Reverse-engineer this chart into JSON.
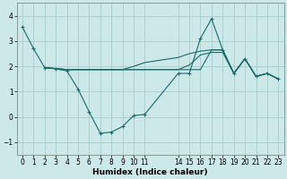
{
  "xlabel": "Humidex (Indice chaleur)",
  "bg_color": "#cce8e8",
  "grid_color": "#aacccc",
  "line_color": "#1a6b6b",
  "ylim": [
    -1.5,
    4.5
  ],
  "xlim": [
    -0.5,
    23.5
  ],
  "yticks": [
    -1,
    0,
    1,
    2,
    3,
    4
  ],
  "xtick_vals": [
    0,
    1,
    2,
    3,
    4,
    5,
    6,
    7,
    8,
    9,
    10,
    11,
    14,
    15,
    16,
    17,
    18,
    19,
    20,
    21,
    22,
    23
  ],
  "xtick_labels": [
    "0",
    "1",
    "2",
    "3",
    "4",
    "5",
    "6",
    "7",
    "8",
    "9",
    "1011",
    "",
    "14151617",
    "",
    "",
    "",
    "18192021",
    "",
    "",
    "",
    "2223",
    ""
  ],
  "series": [
    {
      "x": [
        0,
        1,
        2,
        3,
        4,
        5,
        6,
        7,
        8,
        9,
        10,
        11,
        14,
        15,
        16,
        17,
        18,
        19,
        20,
        21,
        22,
        23
      ],
      "y": [
        3.55,
        2.7,
        1.95,
        1.9,
        1.82,
        1.1,
        0.2,
        -0.65,
        -0.6,
        -0.38,
        0.05,
        0.1,
        1.72,
        1.72,
        3.1,
        3.88,
        2.65,
        1.72,
        2.3,
        1.6,
        1.72,
        1.5
      ],
      "marker": true
    },
    {
      "x": [
        2,
        3,
        4,
        5,
        6,
        7,
        8,
        9,
        10,
        11,
        14,
        15,
        16,
        17,
        18,
        19,
        20,
        21,
        22,
        23
      ],
      "y": [
        1.95,
        1.91,
        1.87,
        1.87,
        1.87,
        1.87,
        1.87,
        1.87,
        1.87,
        1.87,
        1.87,
        1.87,
        1.87,
        2.65,
        2.65,
        1.72,
        2.3,
        1.6,
        1.72,
        1.5
      ],
      "marker": false
    },
    {
      "x": [
        2,
        3,
        4,
        5,
        6,
        7,
        8,
        9,
        10,
        11,
        14,
        15,
        16,
        17,
        18,
        19,
        20,
        21,
        22,
        23
      ],
      "y": [
        1.95,
        1.91,
        1.87,
        1.87,
        1.87,
        1.87,
        1.87,
        1.87,
        1.87,
        1.87,
        1.87,
        2.05,
        2.45,
        2.55,
        2.55,
        1.72,
        2.3,
        1.6,
        1.72,
        1.5
      ],
      "marker": false
    },
    {
      "x": [
        2,
        3,
        4,
        5,
        6,
        7,
        8,
        9,
        10,
        11,
        14,
        15,
        16,
        17,
        18,
        19,
        20,
        21,
        22,
        23
      ],
      "y": [
        1.95,
        1.91,
        1.87,
        1.87,
        1.87,
        1.87,
        1.87,
        1.87,
        2.0,
        2.15,
        2.35,
        2.5,
        2.6,
        2.65,
        2.65,
        1.72,
        2.3,
        1.6,
        1.72,
        1.5
      ],
      "marker": false
    }
  ]
}
